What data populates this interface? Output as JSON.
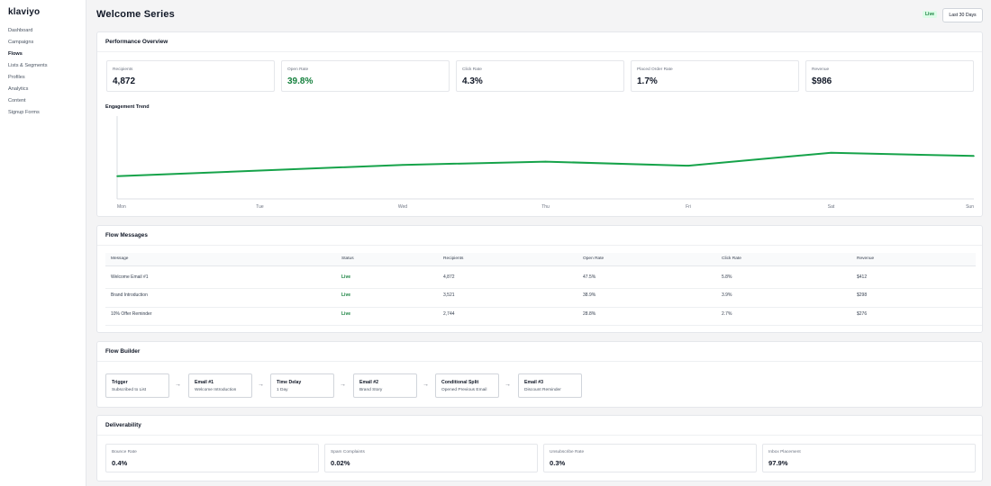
{
  "app": {
    "logo": "klaviyo"
  },
  "sidebar": {
    "items": [
      {
        "label": "Dashboard",
        "active": false
      },
      {
        "label": "Campaigns",
        "active": false
      },
      {
        "label": "Flows",
        "active": true
      },
      {
        "label": "Lists & Segments",
        "active": false
      },
      {
        "label": "Profiles",
        "active": false
      },
      {
        "label": "Analytics",
        "active": false
      },
      {
        "label": "Content",
        "active": false
      },
      {
        "label": "Signup Forms",
        "active": false
      }
    ]
  },
  "header": {
    "title": "Welcome Series",
    "status_badge": "Live",
    "date_range_button": "Last 30 Days"
  },
  "performance": {
    "title": "Performance Overview",
    "metrics": [
      {
        "label": "Recipients",
        "value": "4,872"
      },
      {
        "label": "Open Rate",
        "value": "39.8%"
      },
      {
        "label": "Click Rate",
        "value": "4.3%"
      },
      {
        "label": "Placed Order Rate",
        "value": "1.7%"
      },
      {
        "label": "Revenue",
        "value": "$986"
      }
    ],
    "trend_title": "Engagement Trend"
  },
  "chart_data": {
    "type": "line",
    "title": "Engagement Trend",
    "categories": [
      "Mon",
      "Tue",
      "Wed",
      "Thu",
      "Fri",
      "Sat",
      "Sun"
    ],
    "series": [
      {
        "values": [
          28,
          35,
          42,
          46,
          41,
          57,
          53
        ]
      }
    ],
    "ylim": [
      0,
      100
    ],
    "grid": false,
    "line_color": "#16a34a"
  },
  "messages": {
    "title": "Flow Messages",
    "columns": [
      "Message",
      "Status",
      "Recipients",
      "Open Rate",
      "Click Rate",
      "Revenue"
    ],
    "rows": [
      [
        "Welcome Email #1",
        "Live",
        "4,872",
        "47.5%",
        "5.8%",
        "$412"
      ],
      [
        "Brand Introduction",
        "Live",
        "3,521",
        "38.9%",
        "3.9%",
        "$298"
      ],
      [
        "10% Offer Reminder",
        "Live",
        "2,744",
        "28.8%",
        "2.7%",
        "$276"
      ]
    ]
  },
  "flow_builder": {
    "title": "Flow Builder",
    "nodes": [
      {
        "title": "Trigger",
        "subtitle": "Subscribed to List"
      },
      {
        "title": "Email #1",
        "subtitle": "Welcome Introduction"
      },
      {
        "title": "Time Delay",
        "subtitle": "1 Day"
      },
      {
        "title": "Email #2",
        "subtitle": "Brand Story"
      },
      {
        "title": "Conditional Split",
        "subtitle": "Opened Previous Email"
      },
      {
        "title": "Email #3",
        "subtitle": "Discount Reminder"
      }
    ],
    "arrow": "→"
  },
  "deliverability": {
    "title": "Deliverability",
    "metrics": [
      {
        "label": "Bounce Rate",
        "value": "0.4%"
      },
      {
        "label": "Spam Complaints",
        "value": "0.02%"
      },
      {
        "label": "Unsubscribe Rate",
        "value": "0.3%"
      },
      {
        "label": "Inbox Placement",
        "value": "97.9%"
      }
    ]
  },
  "colors": {
    "accent_green": "#16a34a",
    "live_text": "#15803d",
    "live_bg": "#dcfce7"
  }
}
